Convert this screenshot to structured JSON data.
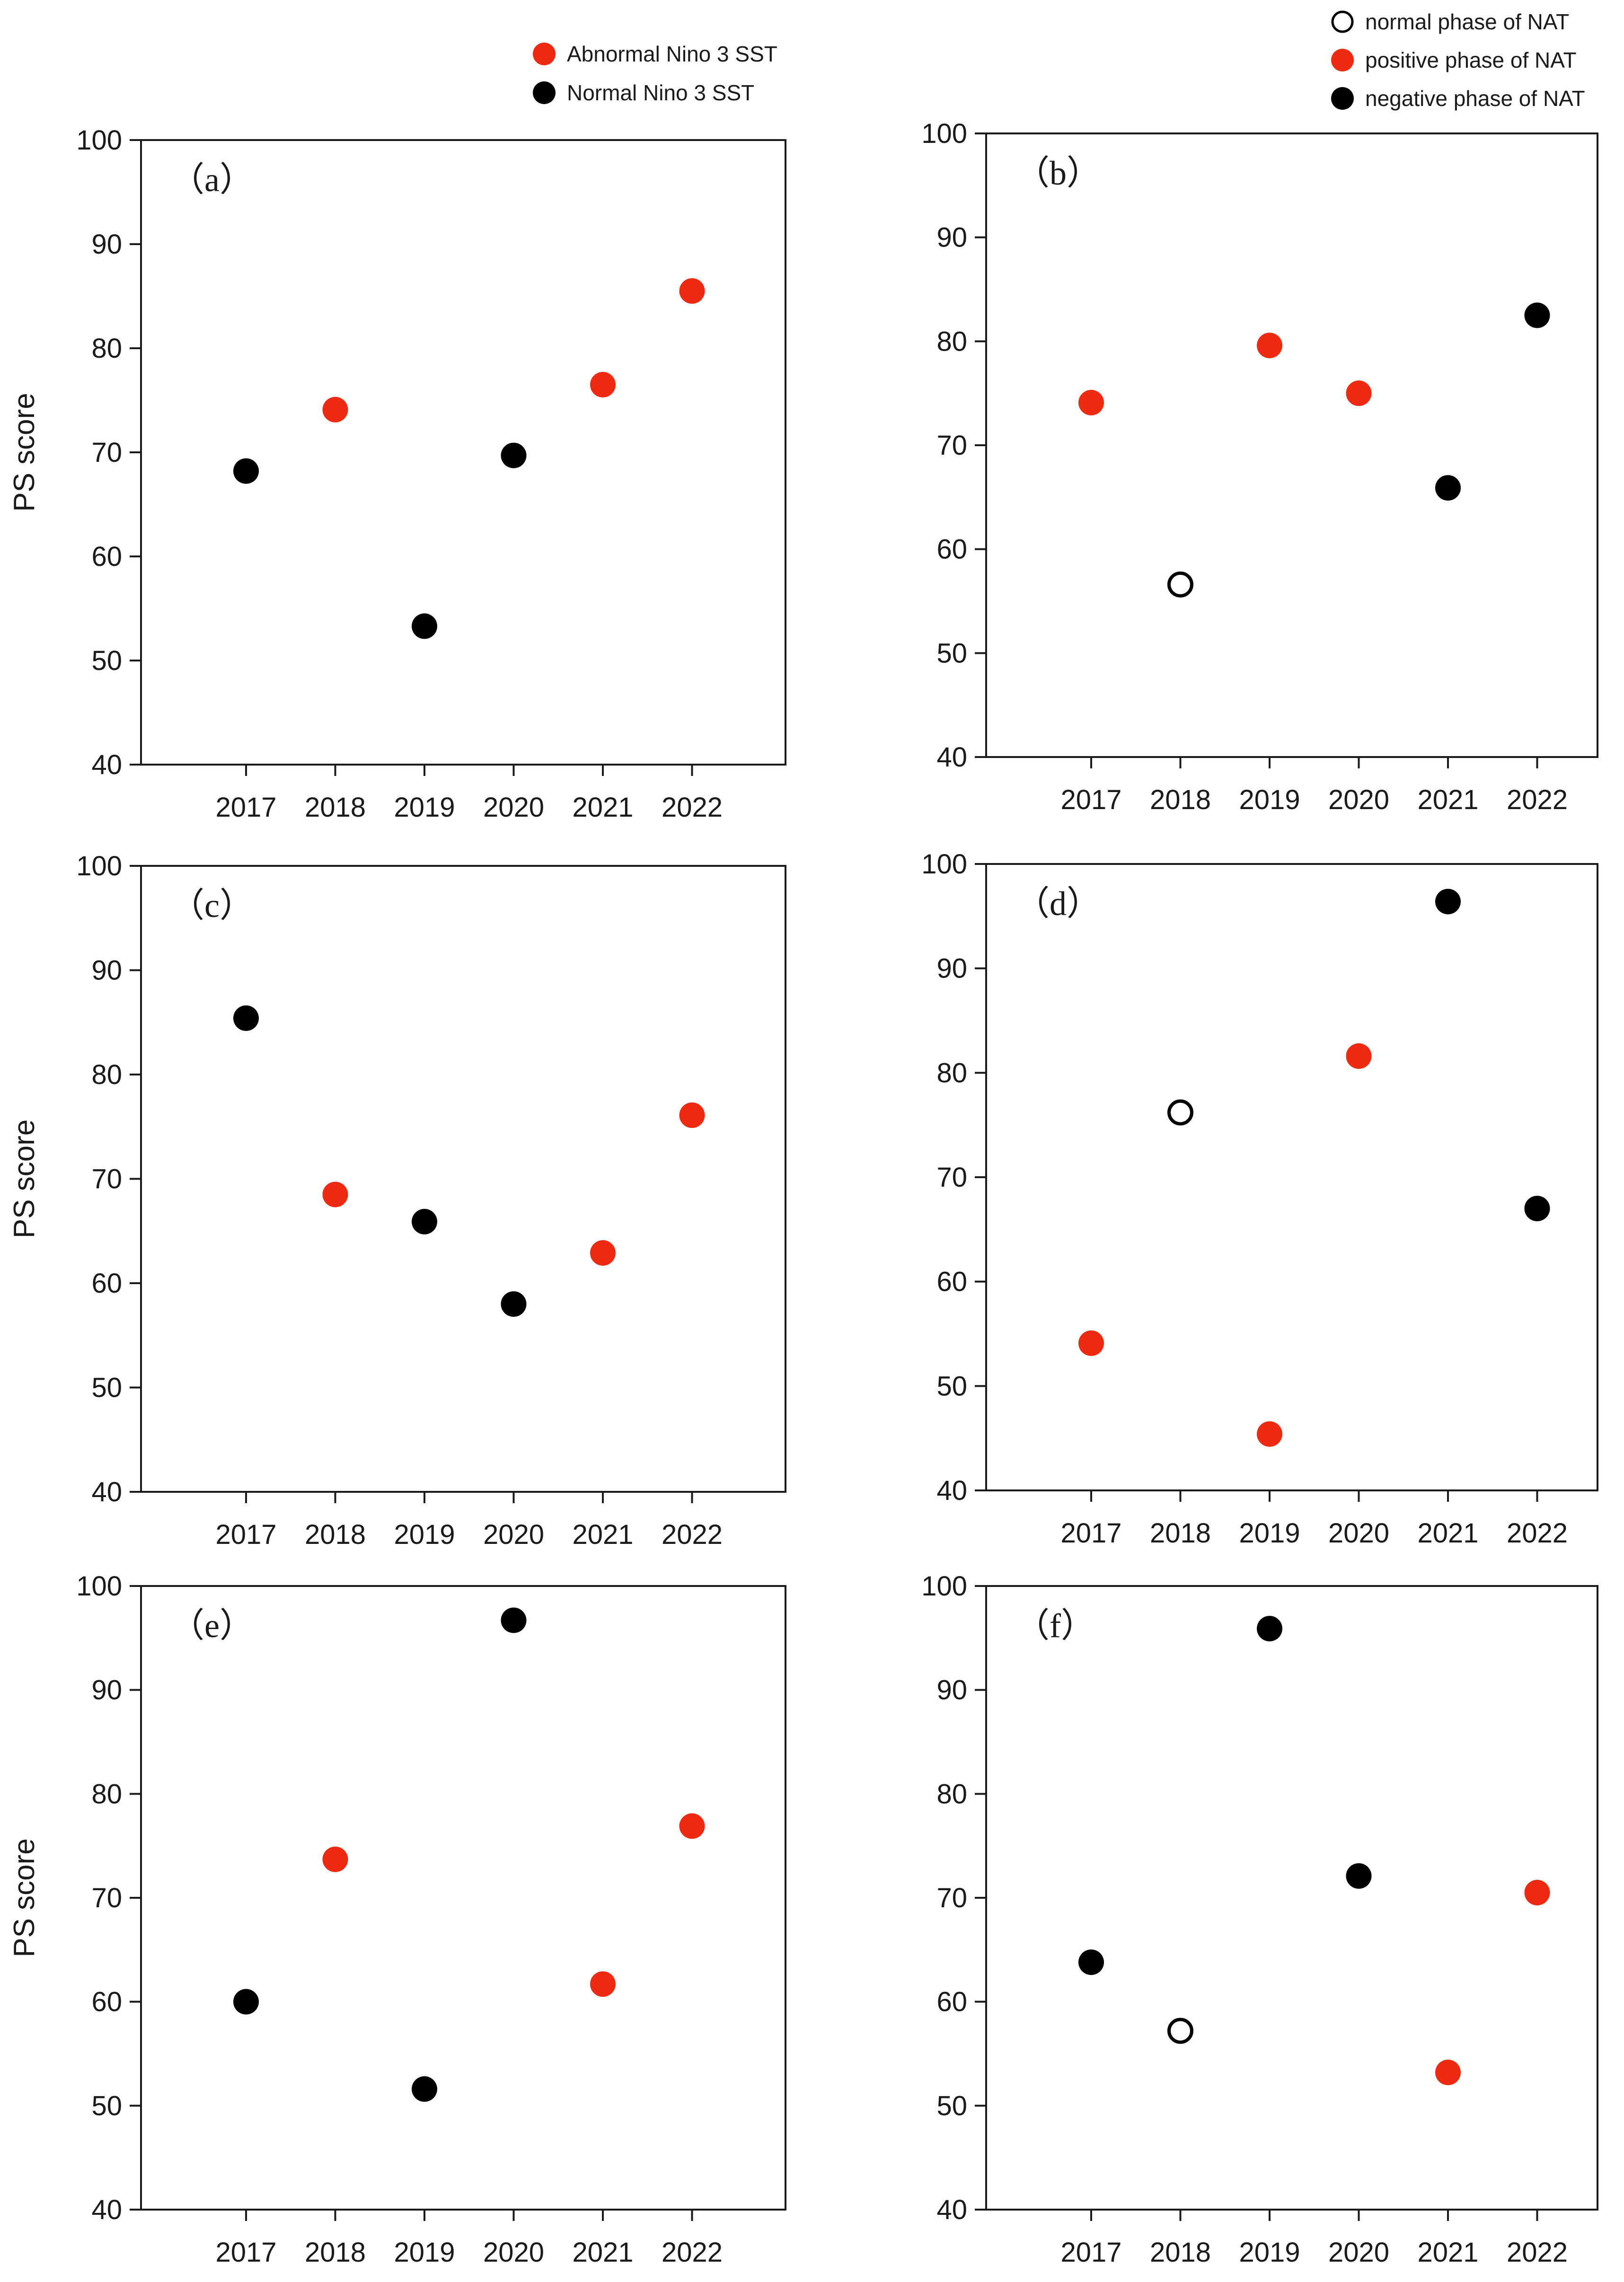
{
  "colors": {
    "abnormal": "#ee2b12",
    "normal_black": "#000000",
    "open": "#ffffff",
    "axis": "#1a1a1a"
  },
  "legends": {
    "left": [
      {
        "label": "Abnormal Nino 3 SST",
        "style": "red"
      },
      {
        "label": "Normal Nino 3 SST",
        "style": "black"
      }
    ],
    "right": [
      {
        "label": "normal phase of NAT",
        "style": "open"
      },
      {
        "label": "positive phase of NAT",
        "style": "red"
      },
      {
        "label": "negative phase of NAT",
        "style": "black"
      }
    ]
  },
  "chart_data": [
    {
      "id": "a",
      "panel_label": "（a）",
      "type": "scatter",
      "ylabel": "PS score",
      "ylim": [
        40,
        100
      ],
      "yticks": [
        40,
        50,
        60,
        70,
        80,
        90,
        100
      ],
      "categories": [
        "2017",
        "2018",
        "2019",
        "2020",
        "2021",
        "2022"
      ],
      "legend": "left",
      "points": [
        {
          "x": "2017",
          "y": 68.2,
          "style": "black"
        },
        {
          "x": "2018",
          "y": 74.1,
          "style": "red"
        },
        {
          "x": "2019",
          "y": 53.3,
          "style": "black"
        },
        {
          "x": "2020",
          "y": 69.7,
          "style": "black"
        },
        {
          "x": "2021",
          "y": 76.5,
          "style": "red"
        },
        {
          "x": "2022",
          "y": 85.5,
          "style": "red"
        }
      ]
    },
    {
      "id": "b",
      "panel_label": "（b）",
      "type": "scatter",
      "ylabel": "",
      "ylim": [
        40,
        100
      ],
      "yticks": [
        40,
        50,
        60,
        70,
        80,
        90,
        100
      ],
      "categories": [
        "2017",
        "2018",
        "2019",
        "2020",
        "2021",
        "2022"
      ],
      "legend": "right",
      "points": [
        {
          "x": "2017",
          "y": 74.1,
          "style": "red"
        },
        {
          "x": "2018",
          "y": 56.6,
          "style": "open"
        },
        {
          "x": "2019",
          "y": 79.6,
          "style": "red"
        },
        {
          "x": "2020",
          "y": 75.0,
          "style": "red"
        },
        {
          "x": "2021",
          "y": 65.9,
          "style": "black"
        },
        {
          "x": "2022",
          "y": 82.5,
          "style": "black"
        }
      ]
    },
    {
      "id": "c",
      "panel_label": "（c）",
      "type": "scatter",
      "ylabel": "PS score",
      "ylim": [
        40,
        100
      ],
      "yticks": [
        40,
        50,
        60,
        70,
        80,
        90,
        100
      ],
      "categories": [
        "2017",
        "2018",
        "2019",
        "2020",
        "2021",
        "2022"
      ],
      "points": [
        {
          "x": "2017",
          "y": 85.4,
          "style": "black"
        },
        {
          "x": "2018",
          "y": 68.5,
          "style": "red"
        },
        {
          "x": "2019",
          "y": 65.9,
          "style": "black"
        },
        {
          "x": "2020",
          "y": 58.0,
          "style": "black"
        },
        {
          "x": "2021",
          "y": 62.9,
          "style": "red"
        },
        {
          "x": "2022",
          "y": 76.1,
          "style": "red"
        }
      ]
    },
    {
      "id": "d",
      "panel_label": "（d）",
      "type": "scatter",
      "ylabel": "",
      "ylim": [
        40,
        100
      ],
      "yticks": [
        40,
        50,
        60,
        70,
        80,
        90,
        100
      ],
      "categories": [
        "2017",
        "2018",
        "2019",
        "2020",
        "2021",
        "2022"
      ],
      "points": [
        {
          "x": "2017",
          "y": 54.1,
          "style": "red"
        },
        {
          "x": "2018",
          "y": 76.2,
          "style": "open"
        },
        {
          "x": "2019",
          "y": 45.4,
          "style": "red"
        },
        {
          "x": "2020",
          "y": 81.6,
          "style": "red"
        },
        {
          "x": "2021",
          "y": 96.4,
          "style": "black"
        },
        {
          "x": "2022",
          "y": 67.0,
          "style": "black"
        }
      ]
    },
    {
      "id": "e",
      "panel_label": "（e）",
      "type": "scatter",
      "ylabel": "PS score",
      "ylim": [
        40,
        100
      ],
      "yticks": [
        40,
        50,
        60,
        70,
        80,
        90,
        100
      ],
      "categories": [
        "2017",
        "2018",
        "2019",
        "2020",
        "2021",
        "2022"
      ],
      "points": [
        {
          "x": "2017",
          "y": 60.0,
          "style": "black"
        },
        {
          "x": "2018",
          "y": 73.7,
          "style": "red"
        },
        {
          "x": "2019",
          "y": 51.6,
          "style": "black"
        },
        {
          "x": "2020",
          "y": 96.7,
          "style": "black"
        },
        {
          "x": "2021",
          "y": 61.7,
          "style": "red"
        },
        {
          "x": "2022",
          "y": 76.9,
          "style": "red"
        }
      ]
    },
    {
      "id": "f",
      "panel_label": "（f）",
      "type": "scatter",
      "ylabel": "",
      "ylim": [
        40,
        100
      ],
      "yticks": [
        40,
        50,
        60,
        70,
        80,
        90,
        100
      ],
      "categories": [
        "2017",
        "2018",
        "2019",
        "2020",
        "2021",
        "2022"
      ],
      "points": [
        {
          "x": "2017",
          "y": 63.8,
          "style": "black"
        },
        {
          "x": "2018",
          "y": 57.2,
          "style": "open"
        },
        {
          "x": "2019",
          "y": 95.9,
          "style": "black"
        },
        {
          "x": "2020",
          "y": 72.1,
          "style": "black"
        },
        {
          "x": "2021",
          "y": 53.2,
          "style": "red"
        },
        {
          "x": "2022",
          "y": 70.5,
          "style": "red"
        }
      ]
    }
  ]
}
